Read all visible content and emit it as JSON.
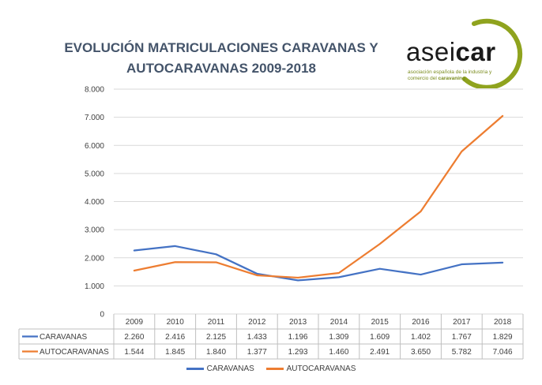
{
  "title": "EVOLUCIÓN MATRICULACIONES CARAVANAS Y AUTOCARAVANAS 2009-2018",
  "logo": {
    "word_prefix": "asei",
    "word_bold": "car",
    "tagline_line1": "asociación española de la industria y",
    "tagline_line2_prefix": "comercio del ",
    "tagline_line2_bold": "caravaning",
    "accent_color": "#8fa31e"
  },
  "chart_data": {
    "type": "line",
    "categories": [
      "2009",
      "2010",
      "2011",
      "2012",
      "2013",
      "2014",
      "2015",
      "2016",
      "2017",
      "2018"
    ],
    "ylim": [
      0,
      8000
    ],
    "yticks": [
      "0",
      "1.000",
      "2.000",
      "3.000",
      "4.000",
      "5.000",
      "6.000",
      "7.000",
      "8.000"
    ],
    "grid": true,
    "legend_position": "bottom",
    "series": [
      {
        "name": "CARAVANAS",
        "color": "#4472c4",
        "values": [
          2260,
          2416,
          2125,
          1433,
          1196,
          1309,
          1609,
          1402,
          1767,
          1829
        ],
        "labels": [
          "2.260",
          "2.416",
          "2.125",
          "1.433",
          "1.196",
          "1.309",
          "1.609",
          "1.402",
          "1.767",
          "1.829"
        ]
      },
      {
        "name": "AUTOCARAVANAS",
        "color": "#ed7d31",
        "values": [
          1544,
          1845,
          1840,
          1377,
          1293,
          1460,
          2491,
          3650,
          5782,
          7046
        ],
        "labels": [
          "1.544",
          "1.845",
          "1.840",
          "1.377",
          "1.293",
          "1.460",
          "2.491",
          "3.650",
          "5.782",
          "7.046"
        ]
      }
    ]
  }
}
